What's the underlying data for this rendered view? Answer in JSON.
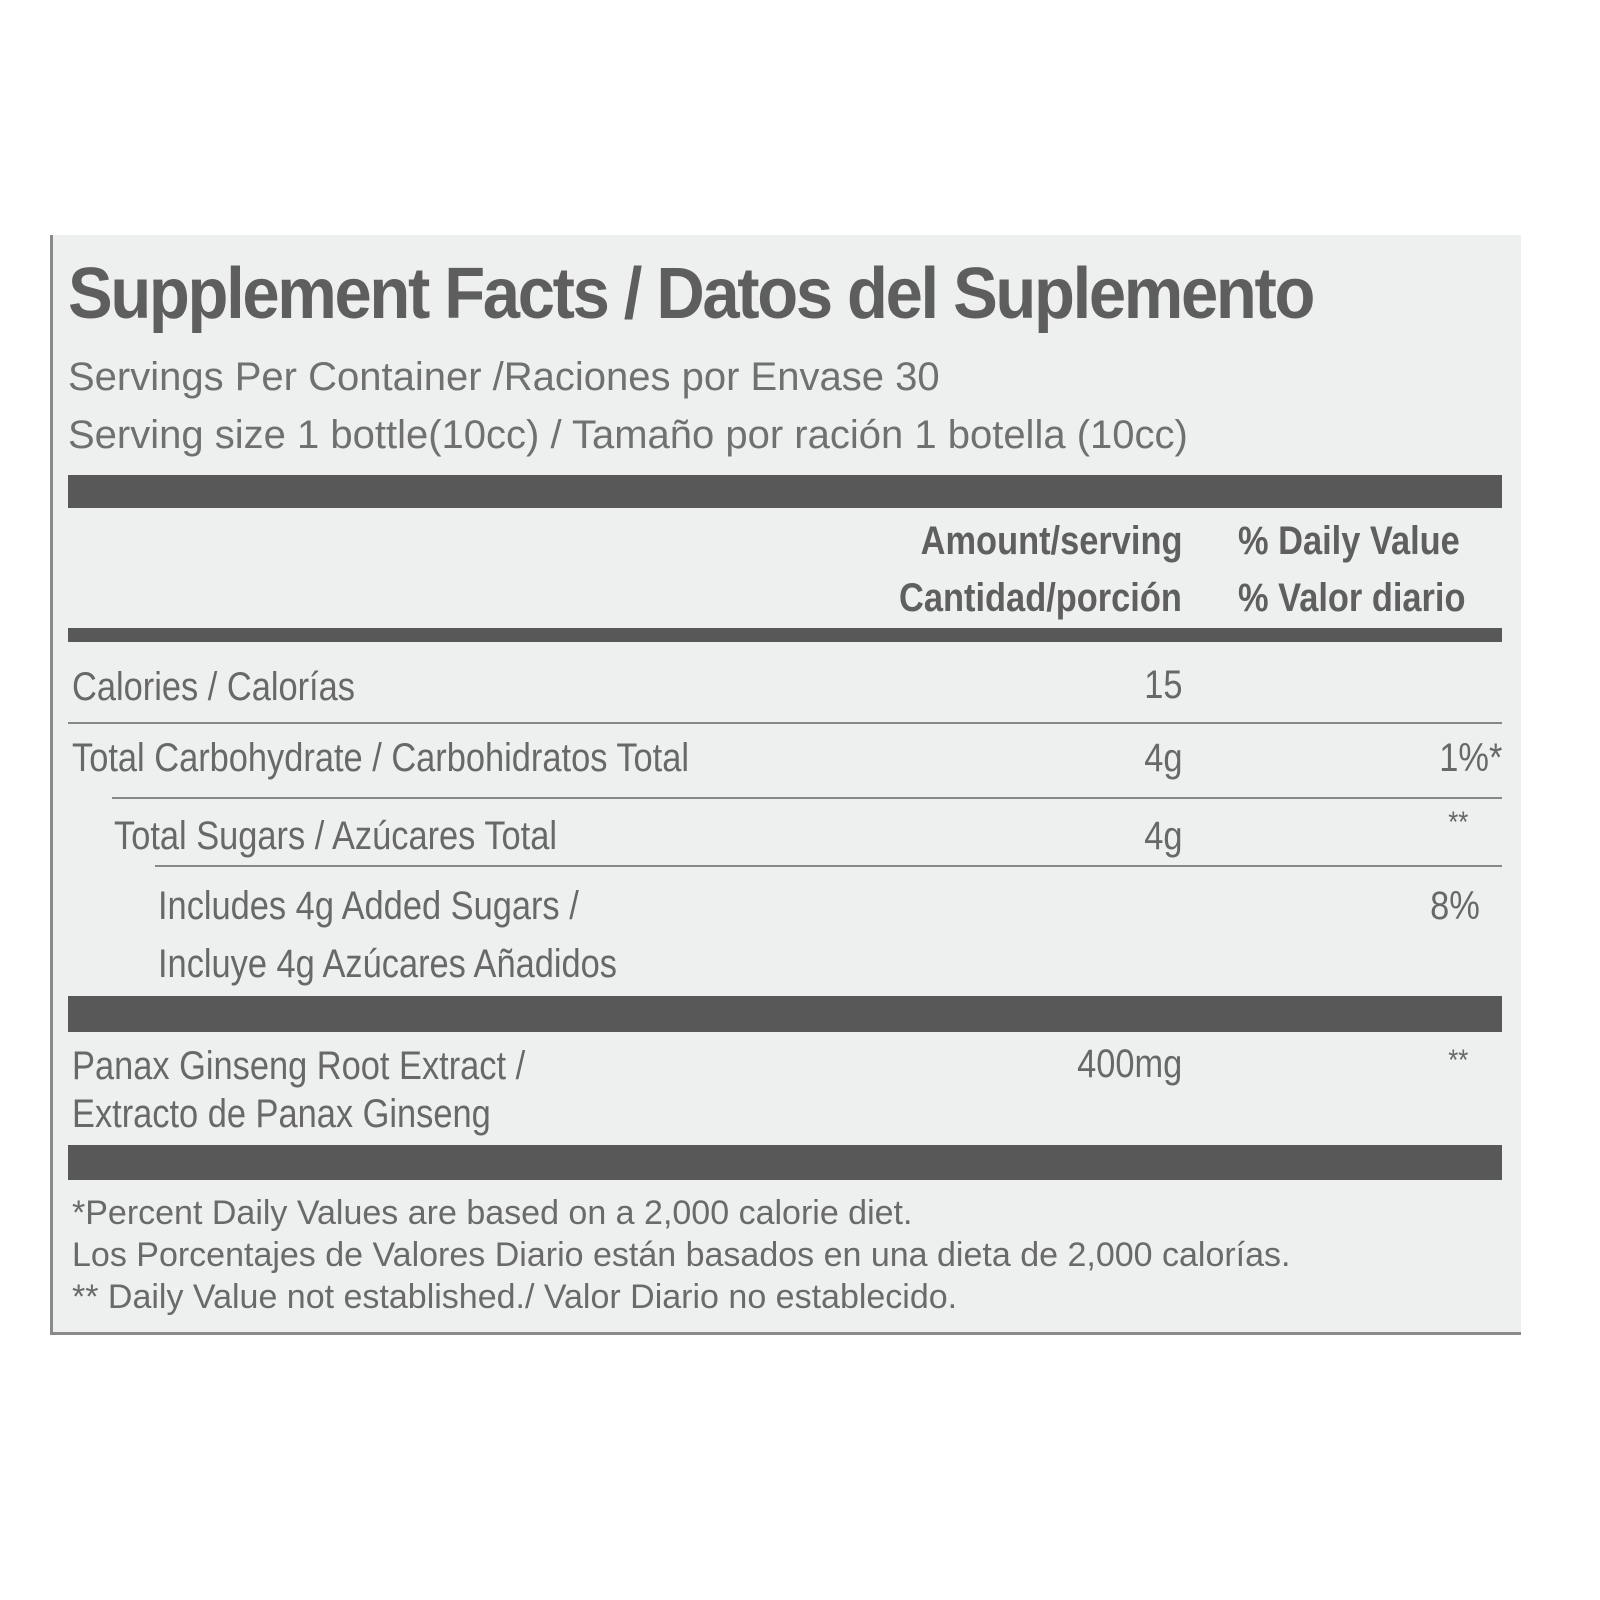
{
  "title": "Supplement  Facts / Datos del Suplemento",
  "servings_per_container": "Servings Per Container /Raciones por Envase  30",
  "serving_size": "Serving size  1 bottle(10cc)  / Tamaño por ración 1 botella (10cc)",
  "header": {
    "amount_en": "Amount/serving",
    "amount_es": "Cantidad/porción",
    "dv_en": "% Daily Value",
    "dv_es": "% Valor diario"
  },
  "rows": [
    {
      "label": "Calories  / Calorías",
      "amount": "15",
      "dv": ""
    },
    {
      "label": "Total Carbohydrate / Carbohidratos Total",
      "amount": "4g",
      "dv": "1%*"
    },
    {
      "label": "Total Sugars / Azúcares Total",
      "amount": "4g",
      "dv": "**"
    },
    {
      "label": "Includes 4g Added Sugars /",
      "label2": "Incluye 4g Azúcares Añadidos",
      "amount": "",
      "dv": "8%"
    },
    {
      "label": "Panax Ginseng Root Extract /",
      "label2": "Extracto de Panax Ginseng",
      "amount": "400mg",
      "dv": "**"
    }
  ],
  "footnotes": [
    "*Percent Daily Values are based on a 2,000 calorie diet.",
    "Los Porcentajes de Valores Diario están basados en una dieta de 2,000 calorías.",
    "** Daily Value not established./ Valor Diario no establecido."
  ]
}
